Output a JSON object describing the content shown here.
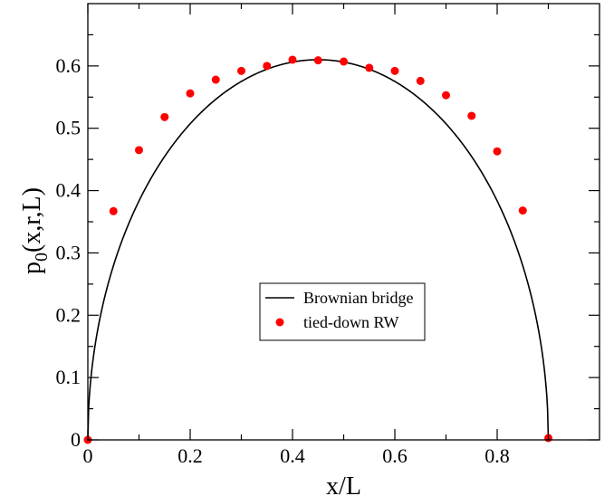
{
  "chart_data": {
    "type": "scatter",
    "xlabel": "x/L",
    "ylabel_main": "p",
    "ylabel_sub": "0",
    "ylabel_rest": "(x,r,L)",
    "xlim": [
      0,
      1.0
    ],
    "ylim": [
      0,
      0.7
    ],
    "xticks": [
      0,
      0.2,
      0.4,
      0.6,
      0.8
    ],
    "xtick_labels": [
      "0",
      "0.2",
      "0.4",
      "0.6",
      "0.8"
    ],
    "xticks_minor": [
      0.1,
      0.3,
      0.5,
      0.7,
      0.9
    ],
    "yticks": [
      0,
      0.1,
      0.2,
      0.3,
      0.4,
      0.5,
      0.6
    ],
    "ytick_labels": [
      "0",
      "0.1",
      "0.2",
      "0.3",
      "0.4",
      "0.5",
      "0.6"
    ],
    "yticks_minor": [
      0.05,
      0.15,
      0.25,
      0.35,
      0.45,
      0.55,
      0.65
    ],
    "grid": false,
    "legend_position": "center",
    "series": [
      {
        "name": "Brownian bridge",
        "kind": "line",
        "color": "#000000",
        "curve": {
          "r": 0.9,
          "amplitude": 0.61
        }
      },
      {
        "name": "tied-down RW",
        "kind": "scatter",
        "color": "#ff0000",
        "x": [
          0,
          0.05,
          0.1,
          0.15,
          0.2,
          0.25,
          0.3,
          0.35,
          0.4,
          0.45,
          0.5,
          0.55,
          0.6,
          0.65,
          0.7,
          0.75,
          0.8,
          0.85,
          0.9
        ],
        "y": [
          0.0,
          0.367,
          0.465,
          0.518,
          0.556,
          0.578,
          0.592,
          0.6,
          0.61,
          0.609,
          0.607,
          0.597,
          0.592,
          0.576,
          0.553,
          0.52,
          0.463,
          0.368,
          0.003
        ]
      }
    ]
  }
}
